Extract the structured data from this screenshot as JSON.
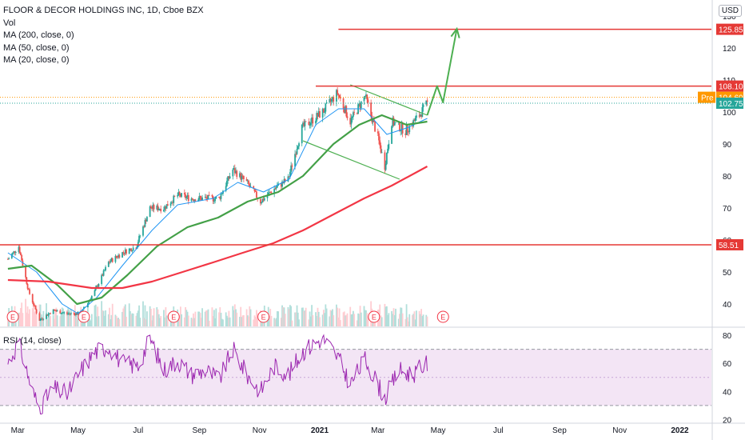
{
  "header": {
    "title": "FLOOR & DECOR HOLDINGS INC, 1D, Cboe BZX",
    "indicators": [
      "Vol",
      "MA (200, close, 0)",
      "MA (50, close, 0)",
      "MA (20, close, 0)"
    ],
    "currency_button": "USD"
  },
  "rsi_panel": {
    "label": "RSI (14, close)",
    "ticks": [
      "80",
      "60",
      "40",
      "20"
    ]
  },
  "earnings_marker_label": "E",
  "price_tags": {
    "resistance_high": "125.85",
    "resistance_mid": "108.10",
    "pre_label": "Pre",
    "pre_value": "104.60",
    "last": "102.75",
    "support": "58.51"
  },
  "colors": {
    "up_candle": "#26a69a",
    "down_candle": "#ef5350",
    "ma200": "#f23645",
    "ma50": "#43a047",
    "ma20": "#2196f3",
    "horizontal_lines": "#e53935",
    "arrow": "#4caf50",
    "rsi_line": "#9c27b0",
    "rsi_band": "#f3e5f5",
    "pre_tag": "#ff9800",
    "last_tag": "#26a69a"
  },
  "chart_data": [
    {
      "type": "candlestick",
      "title": "FLOOR & DECOR HOLDINGS INC, 1D, Cboe BZX",
      "x_ticks": [
        "Mar",
        "May",
        "Jul",
        "Sep",
        "Nov",
        "2021",
        "Mar",
        "May",
        "Jul",
        "Sep",
        "Nov",
        "2022"
      ],
      "y_ticks": [
        40,
        50,
        60,
        70,
        80,
        90,
        100,
        110,
        120,
        130
      ],
      "ylim": [
        33,
        132
      ],
      "horizontal_levels": [
        125.85,
        108.1,
        58.51
      ],
      "price_path": [
        [
          "2020-02-20",
          54
        ],
        [
          "2020-03-02",
          58
        ],
        [
          "2020-03-12",
          44
        ],
        [
          "2020-03-23",
          35
        ],
        [
          "2020-04-06",
          38
        ],
        [
          "2020-04-20",
          37
        ],
        [
          "2020-05-04",
          37
        ],
        [
          "2020-05-18",
          44
        ],
        [
          "2020-06-01",
          53
        ],
        [
          "2020-06-15",
          56
        ],
        [
          "2020-06-29",
          58
        ],
        [
          "2020-07-13",
          70
        ],
        [
          "2020-07-27",
          70
        ],
        [
          "2020-08-10",
          74
        ],
        [
          "2020-08-24",
          73
        ],
        [
          "2020-09-08",
          73
        ],
        [
          "2020-09-21",
          73
        ],
        [
          "2020-10-05",
          82
        ],
        [
          "2020-10-19",
          78
        ],
        [
          "2020-11-02",
          72
        ],
        [
          "2020-11-16",
          76
        ],
        [
          "2020-11-30",
          79
        ],
        [
          "2020-12-14",
          95
        ],
        [
          "2021-01-04",
          100
        ],
        [
          "2021-01-19",
          106
        ],
        [
          "2021-02-01",
          97
        ],
        [
          "2021-02-16",
          105
        ],
        [
          "2021-03-01",
          92
        ],
        [
          "2021-03-08",
          83
        ],
        [
          "2021-03-15",
          97
        ],
        [
          "2021-03-29",
          94
        ],
        [
          "2021-04-12",
          99
        ],
        [
          "2021-04-20",
          102.75
        ]
      ],
      "ma20": [
        [
          "2020-02-20",
          56
        ],
        [
          "2020-03-20",
          50
        ],
        [
          "2020-04-15",
          40
        ],
        [
          "2020-05-01",
          37
        ],
        [
          "2020-05-20",
          42
        ],
        [
          "2020-06-15",
          52
        ],
        [
          "2020-07-15",
          63
        ],
        [
          "2020-08-10",
          71
        ],
        [
          "2020-09-15",
          73
        ],
        [
          "2020-10-10",
          78
        ],
        [
          "2020-11-05",
          75
        ],
        [
          "2020-12-01",
          79
        ],
        [
          "2020-12-28",
          96
        ],
        [
          "2021-01-20",
          101
        ],
        [
          "2021-02-15",
          101
        ],
        [
          "2021-03-10",
          93
        ],
        [
          "2021-03-30",
          95
        ],
        [
          "2021-04-20",
          98
        ]
      ],
      "ma50": [
        [
          "2020-02-20",
          51
        ],
        [
          "2020-03-15",
          52
        ],
        [
          "2020-04-10",
          46
        ],
        [
          "2020-04-30",
          40
        ],
        [
          "2020-05-25",
          42
        ],
        [
          "2020-06-20",
          49
        ],
        [
          "2020-07-20",
          58
        ],
        [
          "2020-08-20",
          64
        ],
        [
          "2020-09-20",
          67
        ],
        [
          "2020-10-20",
          72
        ],
        [
          "2020-11-20",
          75
        ],
        [
          "2020-12-15",
          80
        ],
        [
          "2021-01-15",
          90
        ],
        [
          "2021-02-10",
          96
        ],
        [
          "2021-03-05",
          99
        ],
        [
          "2021-03-30",
          96
        ],
        [
          "2021-04-20",
          97
        ]
      ],
      "ma200": [
        [
          "2020-02-20",
          47.5
        ],
        [
          "2020-04-01",
          47
        ],
        [
          "2020-05-15",
          45
        ],
        [
          "2020-06-15",
          45
        ],
        [
          "2020-07-15",
          47
        ],
        [
          "2020-08-15",
          50
        ],
        [
          "2020-09-15",
          53
        ],
        [
          "2020-10-15",
          56
        ],
        [
          "2020-11-15",
          59
        ],
        [
          "2020-12-15",
          63
        ],
        [
          "2021-01-15",
          68
        ],
        [
          "2021-02-15",
          73
        ],
        [
          "2021-03-15",
          77
        ],
        [
          "2021-04-20",
          83
        ]
      ],
      "triangle_upper": [
        [
          "2021-02-01",
          108.5
        ],
        [
          "2021-04-20",
          99
        ]
      ],
      "triangle_lower": [
        [
          "2020-12-15",
          91
        ],
        [
          "2021-03-23",
          79
        ]
      ],
      "projection_arrow": [
        [
          "2021-04-20",
          99
        ],
        [
          "2021-04-30",
          108.1
        ],
        [
          "2021-05-06",
          103
        ],
        [
          "2021-05-20",
          126
        ]
      ],
      "earnings_dates": [
        "2020-02-25",
        "2020-05-07",
        "2020-08-06",
        "2020-11-05",
        "2021-02-25",
        "2021-05-06"
      ]
    },
    {
      "type": "line",
      "title": "RSI (14, close)",
      "y_ticks": [
        20,
        40,
        60,
        80
      ],
      "ylim": [
        18,
        84
      ],
      "band": [
        30,
        70
      ],
      "series": [
        {
          "name": "RSI (14, close)",
          "x": [
            "2020-02-20",
            "2020-03-02",
            "2020-03-16",
            "2020-03-23",
            "2020-04-06",
            "2020-04-20",
            "2020-05-04",
            "2020-05-18",
            "2020-06-01",
            "2020-06-15",
            "2020-07-01",
            "2020-07-13",
            "2020-07-27",
            "2020-08-10",
            "2020-08-24",
            "2020-09-08",
            "2020-09-21",
            "2020-10-05",
            "2020-10-19",
            "2020-11-02",
            "2020-11-16",
            "2020-12-01",
            "2020-12-14",
            "2021-01-04",
            "2021-01-19",
            "2021-02-01",
            "2021-02-16",
            "2021-03-01",
            "2021-03-08",
            "2021-03-22",
            "2021-04-05",
            "2021-04-20"
          ],
          "values": [
            60,
            75,
            40,
            28,
            42,
            38,
            55,
            68,
            72,
            60,
            58,
            78,
            55,
            62,
            52,
            55,
            48,
            70,
            52,
            40,
            58,
            52,
            68,
            78,
            65,
            45,
            63,
            45,
            35,
            55,
            52,
            60
          ]
        }
      ]
    }
  ]
}
